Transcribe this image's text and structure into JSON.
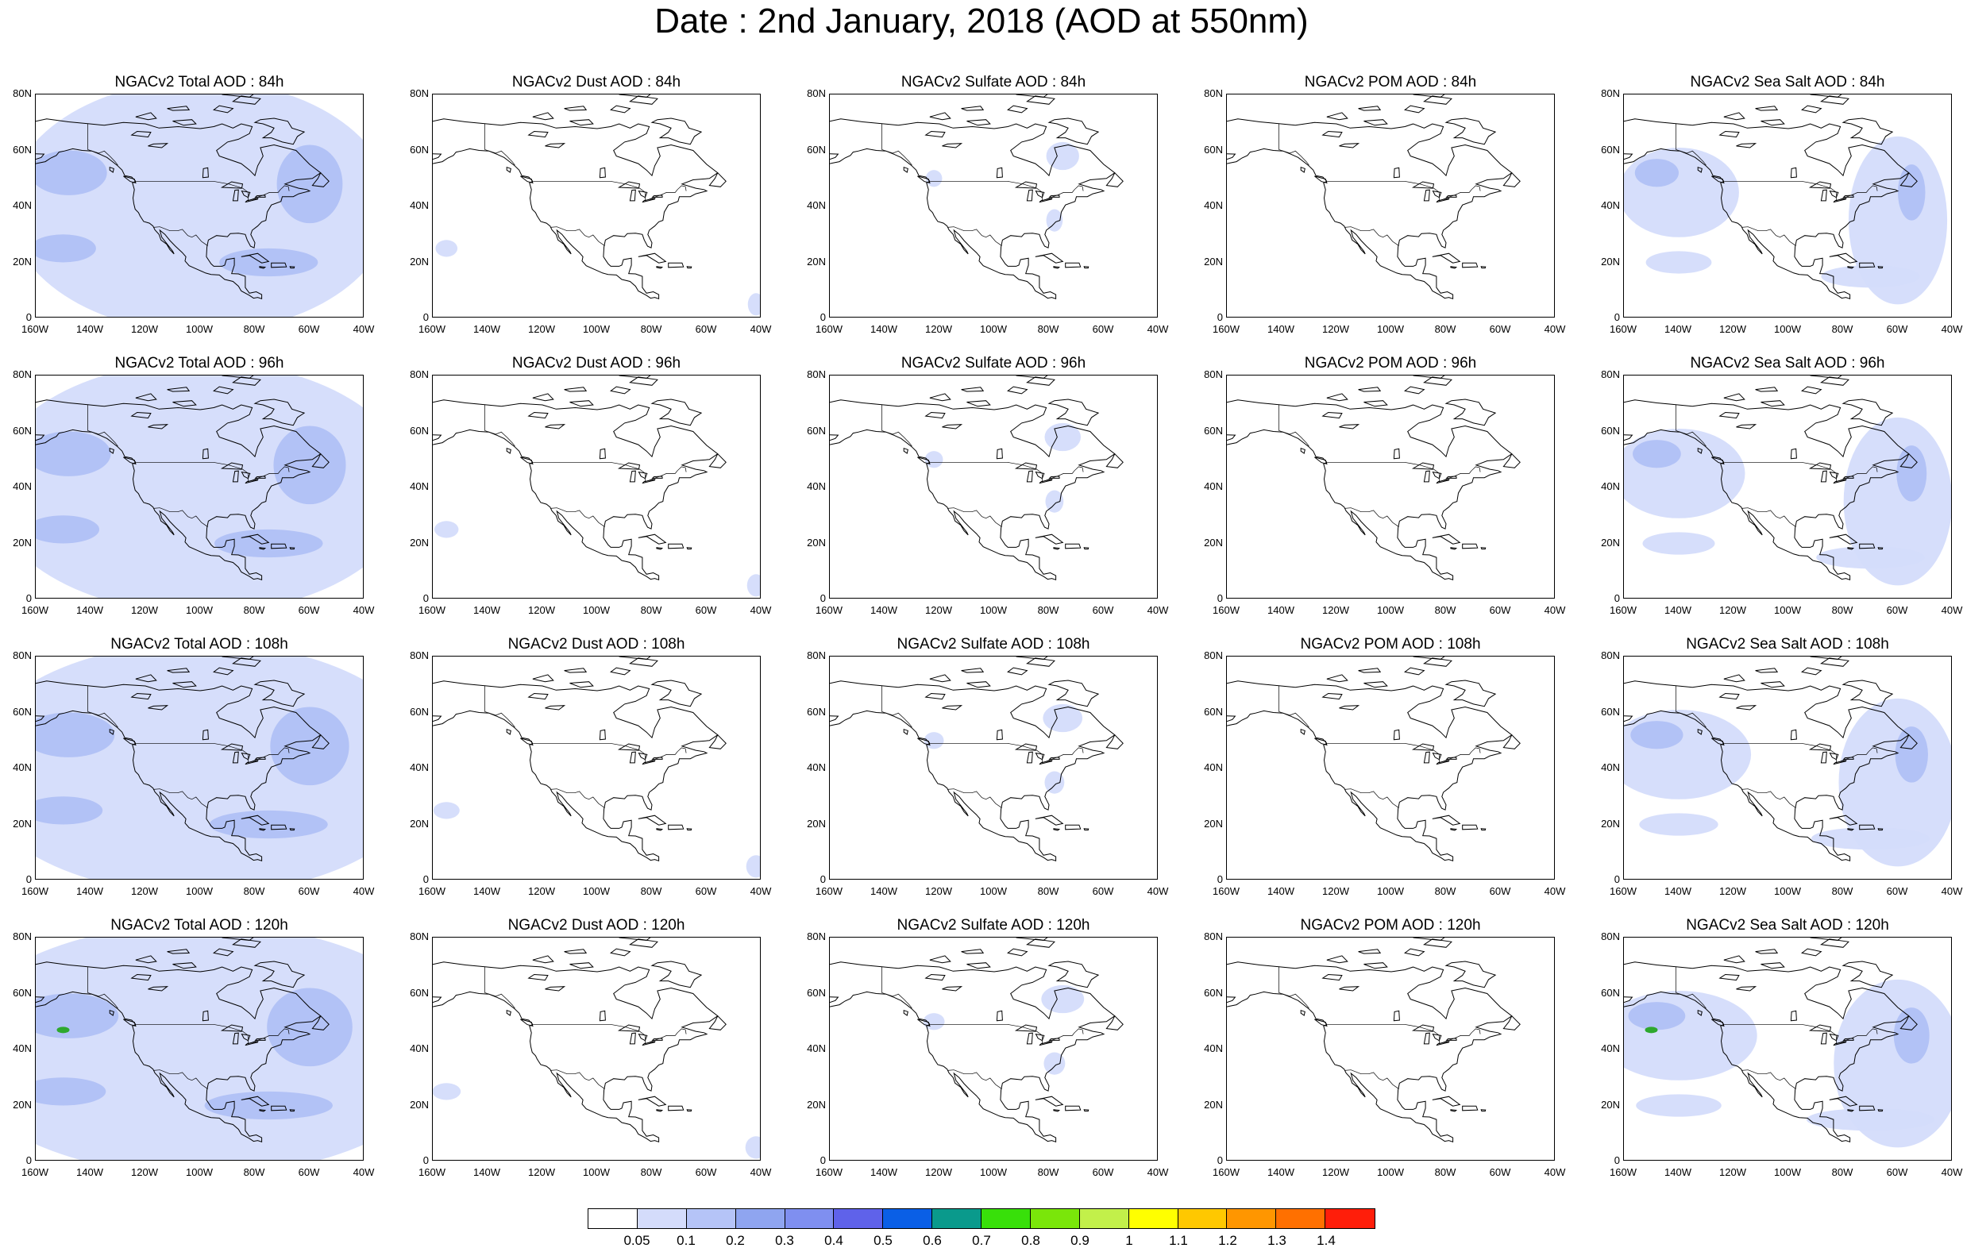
{
  "title": "Date : 2nd January, 2018 (AOD at 550nm)",
  "axes": {
    "x_ticks": [
      "160W",
      "140W",
      "120W",
      "100W",
      "80W",
      "60W",
      "40W"
    ],
    "y_ticks": [
      "80N",
      "60N",
      "40N",
      "20N",
      "0"
    ],
    "lon_range": [
      -160,
      -40
    ],
    "lat_range": [
      0,
      80
    ]
  },
  "colors": {
    "land_outline": "#000000",
    "low": "#d4dcfb",
    "mid": "#b0c0f5",
    "high": "#8fa5f0",
    "higher": "#7f8ff0",
    "green": "#2ea82e",
    "dark_green": "#0c5a18"
  },
  "panels": [
    {
      "title": "NGACv2 Total AOD : 84h",
      "species": "total",
      "hour": 84
    },
    {
      "title": "NGACv2 Dust AOD : 84h",
      "species": "dust",
      "hour": 84
    },
    {
      "title": "NGACv2 Sulfate AOD : 84h",
      "species": "sulfate",
      "hour": 84
    },
    {
      "title": "NGACv2 POM AOD : 84h",
      "species": "pom",
      "hour": 84
    },
    {
      "title": "NGACv2 Sea Salt AOD : 84h",
      "species": "seasalt",
      "hour": 84
    },
    {
      "title": "NGACv2 Total AOD : 96h",
      "species": "total",
      "hour": 96
    },
    {
      "title": "NGACv2 Dust AOD : 96h",
      "species": "dust",
      "hour": 96
    },
    {
      "title": "NGACv2 Sulfate AOD : 96h",
      "species": "sulfate",
      "hour": 96
    },
    {
      "title": "NGACv2 POM AOD : 96h",
      "species": "pom",
      "hour": 96
    },
    {
      "title": "NGACv2 Sea Salt AOD : 96h",
      "species": "seasalt",
      "hour": 96
    },
    {
      "title": "NGACv2 Total AOD : 108h",
      "species": "total",
      "hour": 108
    },
    {
      "title": "NGACv2 Dust AOD : 108h",
      "species": "dust",
      "hour": 108
    },
    {
      "title": "NGACv2 Sulfate AOD : 108h",
      "species": "sulfate",
      "hour": 108
    },
    {
      "title": "NGACv2 POM AOD : 108h",
      "species": "pom",
      "hour": 108
    },
    {
      "title": "NGACv2 Sea Salt AOD : 108h",
      "species": "seasalt",
      "hour": 108
    },
    {
      "title": "NGACv2 Total AOD : 120h",
      "species": "total",
      "hour": 120
    },
    {
      "title": "NGACv2 Dust AOD : 120h",
      "species": "dust",
      "hour": 120
    },
    {
      "title": "NGACv2 Sulfate AOD : 120h",
      "species": "sulfate",
      "hour": 120
    },
    {
      "title": "NGACv2 POM AOD : 120h",
      "species": "pom",
      "hour": 120
    },
    {
      "title": "NGACv2 Sea Salt  AOD : 120h",
      "species": "seasalt",
      "hour": 120
    }
  ],
  "colorbar": {
    "colors": [
      "#ffffff",
      "#d4dcfb",
      "#b5c4f7",
      "#8fa5f0",
      "#7f8ff0",
      "#5f62ea",
      "#0a5fe6",
      "#0a9a8c",
      "#38e00a",
      "#7ae60a",
      "#c2f04a",
      "#ffff00",
      "#ffc800",
      "#ff9600",
      "#ff7000",
      "#ff1e0a"
    ],
    "labels": [
      "0.05",
      "0.1",
      "0.2",
      "0.3",
      "0.4",
      "0.5",
      "0.6",
      "0.7",
      "0.8",
      "0.9",
      "1",
      "1.1",
      "1.2",
      "1.3",
      "1.4"
    ]
  }
}
